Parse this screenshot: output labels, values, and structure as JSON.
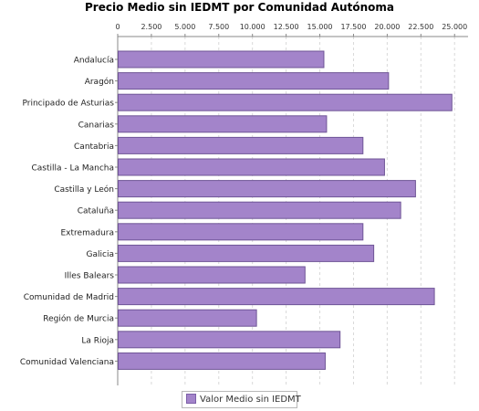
{
  "chart_data": {
    "type": "bar",
    "orientation": "horizontal",
    "title": "Precio Medio sin IEDMT por Comunidad Autónoma",
    "categories": [
      "Andalucía",
      "Aragón",
      "Principado de Asturias",
      "Canarias",
      "Cantabria",
      "Castilla - La Mancha",
      "Castilla y León",
      "Cataluña",
      "Extremadura",
      "Galicia",
      "Illes Balears",
      "Comunidad de Madrid",
      "Región de Murcia",
      "La Rioja",
      "Comunidad Valenciana"
    ],
    "series": [
      {
        "name": "Valor Medio sin IEDMT",
        "values": [
          15300,
          20100,
          24800,
          15500,
          18200,
          19800,
          22100,
          21000,
          18200,
          19000,
          13900,
          23500,
          10300,
          16500,
          15400
        ]
      }
    ],
    "xlim": [
      0,
      26000
    ],
    "x_ticks": [
      "0",
      "2.500",
      "5.000",
      "7.500",
      "10.000",
      "12.500",
      "15.000",
      "17.500",
      "20.000",
      "22.500",
      "25.000"
    ],
    "x_tick_values": [
      0,
      2500,
      5000,
      7500,
      10000,
      12500,
      15000,
      17500,
      20000,
      22500,
      25000
    ],
    "x_axis_position": "top",
    "grid": "vertical dashed",
    "legend_position": "bottom-center",
    "bar_color": "#a384ca",
    "bar_edge_color": "#6f5596"
  }
}
